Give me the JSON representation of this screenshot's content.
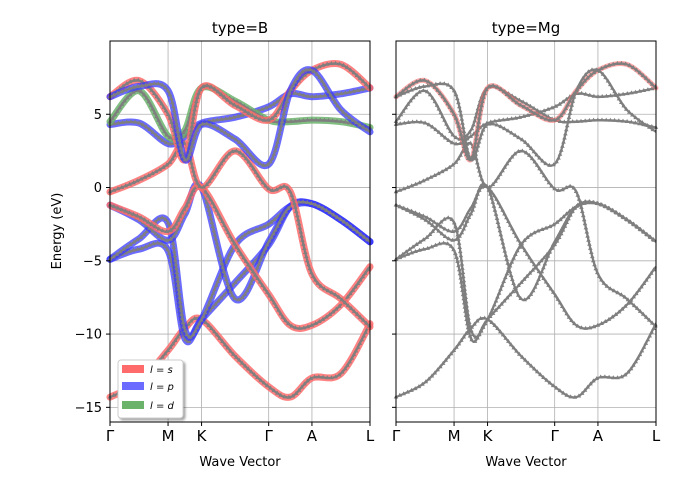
{
  "chart_data": [
    {
      "type": "line",
      "title": "type=B",
      "xlabel": "Wave Vector",
      "ylabel": "Energy (eV)",
      "ylim": [
        -16,
        10
      ],
      "x_ticks": [
        "Γ",
        "M",
        "K",
        "Γ",
        "A",
        "L"
      ],
      "x_tick_positions": [
        0,
        0.577,
        0.91,
        1.577,
        2.007,
        2.584
      ],
      "y_ticks": [
        5,
        0,
        -5,
        -10,
        -15
      ],
      "grid": true,
      "legend": {
        "placement": "lower-left",
        "entries": [
          {
            "label": "l = s",
            "label_math": "$l=s$",
            "color": "#ff6b6b"
          },
          {
            "label": "l = p",
            "label_math": "$l=p$",
            "color": "#6b6bff"
          },
          {
            "label": "l = d",
            "label_math": "$l=d$",
            "color": "#6bb36b"
          }
        ]
      },
      "series": [
        {
          "values": [
            -14.3,
            -13.3,
            -11.1,
            -9.6,
            -9.0,
            -11.5,
            -13.6,
            -14.3,
            -13.0,
            -12.7,
            -9.3
          ],
          "fat": "s"
        },
        {
          "values": [
            -4.9,
            -4.2,
            -4.3,
            -10.3,
            -9.0,
            -6.5,
            -3.9,
            -1.3,
            -1.1,
            -2.2,
            -3.7
          ],
          "fat": "p"
        },
        {
          "values": [
            -4.9,
            -3.5,
            -2.4,
            -9.7,
            -9.0,
            -3.9,
            -2.5,
            -1.3,
            -1.1,
            -2.2,
            -3.7
          ],
          "fat": "p"
        },
        {
          "values": [
            -1.2,
            -2.2,
            -3.6,
            -1.8,
            0.0,
            -7.6,
            -3.7,
            -1.3,
            -1.1,
            -2.2,
            -3.7
          ],
          "fat": "p"
        },
        {
          "values": [
            -1.2,
            -2.0,
            -3.0,
            -1.4,
            0.0,
            -3.9,
            -7.3,
            -9.4,
            -9.4,
            -8.0,
            -5.4
          ],
          "fat": "s"
        },
        {
          "values": [
            -0.3,
            0.5,
            1.6,
            3.0,
            0.0,
            2.5,
            -0.1,
            -0.3,
            -5.9,
            -7.6,
            -9.5
          ],
          "fat": "s"
        },
        {
          "values": [
            4.3,
            4.4,
            3.0,
            3.5,
            4.4,
            4.8,
            5.5,
            6.4,
            6.2,
            6.4,
            6.8
          ],
          "fat": "p"
        },
        {
          "values": [
            4.5,
            6.6,
            3.5,
            3.9,
            6.8,
            5.9,
            4.6,
            4.5,
            4.6,
            4.5,
            4.1
          ],
          "fat": "d"
        },
        {
          "values": [
            6.2,
            7.3,
            5.0,
            1.9,
            6.8,
            5.6,
            4.6,
            6.6,
            8.0,
            8.4,
            6.8
          ],
          "fat": "s"
        },
        {
          "values": [
            6.2,
            6.9,
            6.6,
            1.9,
            4.3,
            3.3,
            1.6,
            6.6,
            8.0,
            5.3,
            3.8
          ],
          "fat": "p"
        }
      ]
    },
    {
      "type": "line",
      "title": "type=Mg",
      "xlabel": "Wave Vector",
      "ylim": [
        -16,
        10
      ],
      "x_ticks": [
        "Γ",
        "M",
        "K",
        "Γ",
        "A",
        "L"
      ],
      "x_tick_positions": [
        0,
        0.577,
        0.91,
        1.577,
        2.007,
        2.584
      ],
      "grid": true,
      "series": [
        {
          "values": [
            -14.3,
            -13.3,
            -11.1,
            -9.6,
            -9.0,
            -11.5,
            -13.6,
            -14.3,
            -13.0,
            -12.7,
            -9.3
          ],
          "fat": "none"
        },
        {
          "values": [
            -4.9,
            -4.2,
            -4.3,
            -10.3,
            -9.0,
            -6.5,
            -3.9,
            -1.3,
            -1.1,
            -2.2,
            -3.7
          ],
          "fat": "none"
        },
        {
          "values": [
            -4.9,
            -3.5,
            -2.4,
            -9.7,
            -9.0,
            -3.9,
            -2.5,
            -1.3,
            -1.1,
            -2.2,
            -3.7
          ],
          "fat": "none"
        },
        {
          "values": [
            -1.2,
            -2.2,
            -3.6,
            -1.8,
            0.0,
            -7.6,
            -3.7,
            -1.3,
            -1.1,
            -2.2,
            -3.7
          ],
          "fat": "none"
        },
        {
          "values": [
            -1.2,
            -2.0,
            -3.0,
            -1.4,
            0.0,
            -3.9,
            -7.3,
            -9.4,
            -9.4,
            -8.0,
            -5.4
          ],
          "fat": "none"
        },
        {
          "values": [
            -0.3,
            0.5,
            1.6,
            3.0,
            0.0,
            2.5,
            -0.1,
            -0.3,
            -5.9,
            -7.6,
            -9.5
          ],
          "fat": "none"
        },
        {
          "values": [
            4.3,
            4.4,
            3.0,
            3.5,
            4.4,
            4.8,
            5.5,
            6.4,
            6.2,
            6.4,
            6.8
          ],
          "fat": "none"
        },
        {
          "values": [
            4.5,
            6.6,
            3.5,
            3.9,
            6.8,
            5.9,
            4.6,
            4.5,
            4.6,
            4.5,
            4.1
          ],
          "fat": "none"
        },
        {
          "values": [
            6.2,
            7.3,
            5.0,
            1.9,
            6.8,
            5.6,
            4.6,
            6.6,
            8.0,
            8.4,
            6.8
          ],
          "fat": "mg-s"
        },
        {
          "values": [
            6.2,
            6.9,
            6.6,
            1.9,
            4.3,
            3.3,
            1.6,
            6.6,
            8.0,
            5.3,
            3.8
          ],
          "fat": "none"
        }
      ]
    }
  ],
  "sample_positions": [
    0,
    0.289,
    0.577,
    0.744,
    0.91,
    1.243,
    1.577,
    1.792,
    2.007,
    2.295,
    2.584
  ],
  "colors": {
    "marker": "#7f7f7f",
    "grid": "#b0b0b0",
    "s": "#ff6b6b",
    "p": "#3a3aff",
    "d": "#6bb36b"
  }
}
